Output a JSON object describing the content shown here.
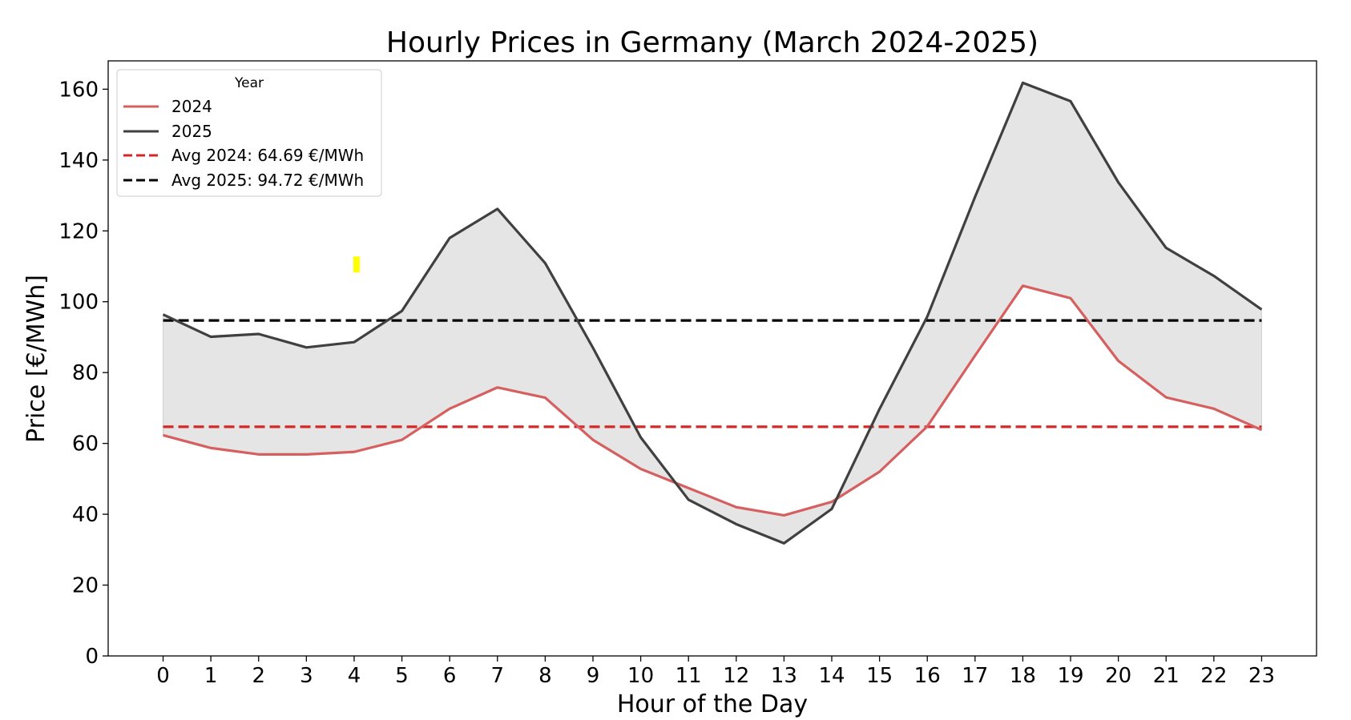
{
  "chart_data": {
    "type": "line",
    "title": "Hourly Prices in Germany (March 2024-2025)",
    "xlabel": "Hour of the Day",
    "ylabel": "Price [€/MWh]",
    "x": [
      0,
      1,
      2,
      3,
      4,
      5,
      6,
      7,
      8,
      9,
      10,
      11,
      12,
      13,
      14,
      15,
      16,
      17,
      18,
      19,
      20,
      21,
      22,
      23
    ],
    "xlim": [
      -1.15,
      24.15
    ],
    "ylim": [
      0,
      168
    ],
    "yticks": [
      0,
      20,
      40,
      60,
      80,
      100,
      120,
      140,
      160
    ],
    "grid": false,
    "legend": {
      "title": "Year",
      "placement": "top-left",
      "entries": [
        "2024",
        "2025",
        "Avg 2024: 64.69 €/MWh",
        "Avg 2025: 94.72 €/MWh"
      ]
    },
    "series": [
      {
        "name": "2024",
        "color": "#d65f5f",
        "style": "solid",
        "values": [
          62.3,
          58.7,
          56.9,
          56.9,
          57.6,
          61.0,
          69.8,
          75.8,
          72.9,
          61.0,
          52.8,
          47.4,
          42.0,
          39.7,
          43.5,
          52.0,
          64.8,
          84.8,
          104.5,
          101.0,
          83.3,
          73.0,
          69.8,
          63.8
        ]
      },
      {
        "name": "2025",
        "color": "#404040",
        "style": "solid",
        "values": [
          96.4,
          90.1,
          90.9,
          87.1,
          88.6,
          97.4,
          118.0,
          126.2,
          110.9,
          87.0,
          61.7,
          44.1,
          37.2,
          31.8,
          41.5,
          69.7,
          95.8,
          129.6,
          161.8,
          156.6,
          133.7,
          115.2,
          107.3,
          97.8
        ]
      },
      {
        "name": "Avg 2024: 64.69 €/MWh",
        "color": "#d62728",
        "style": "dashed",
        "constant": 64.69
      },
      {
        "name": "Avg 2025: 94.72 €/MWh",
        "color": "#000000",
        "style": "dashed",
        "constant": 94.72
      }
    ],
    "fill_between": {
      "between": [
        "2024",
        "2025"
      ],
      "color": "#e5e5e5"
    },
    "annotation_marker": {
      "x": 4.05,
      "y": 110.5,
      "color": "#ffff00"
    }
  }
}
